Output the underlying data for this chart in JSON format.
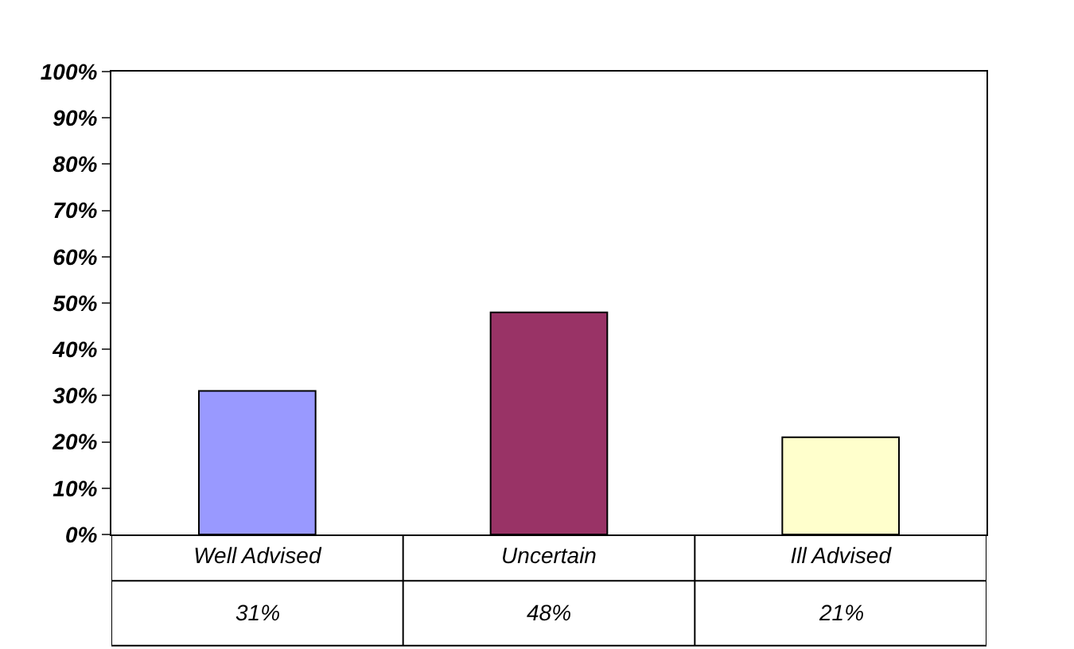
{
  "chart_data": {
    "type": "bar",
    "categories": [
      "Well Advised",
      "Uncertain",
      "Ill Advised"
    ],
    "values": [
      31,
      48,
      21
    ],
    "colors": [
      "#9999ff",
      "#993366",
      "#ffffcc"
    ],
    "value_labels": [
      "31%",
      "48%",
      "21%"
    ],
    "ylim": [
      0,
      100
    ],
    "yticks": [
      {
        "value": 0,
        "label": "0%"
      },
      {
        "value": 10,
        "label": "10%"
      },
      {
        "value": 20,
        "label": "20%"
      },
      {
        "value": 30,
        "label": "30%"
      },
      {
        "value": 40,
        "label": "40%"
      },
      {
        "value": 50,
        "label": "50%"
      },
      {
        "value": 60,
        "label": "60%"
      },
      {
        "value": 70,
        "label": "70%"
      },
      {
        "value": 80,
        "label": "80%"
      },
      {
        "value": 90,
        "label": "90%"
      },
      {
        "value": 100,
        "label": "100%"
      }
    ]
  }
}
